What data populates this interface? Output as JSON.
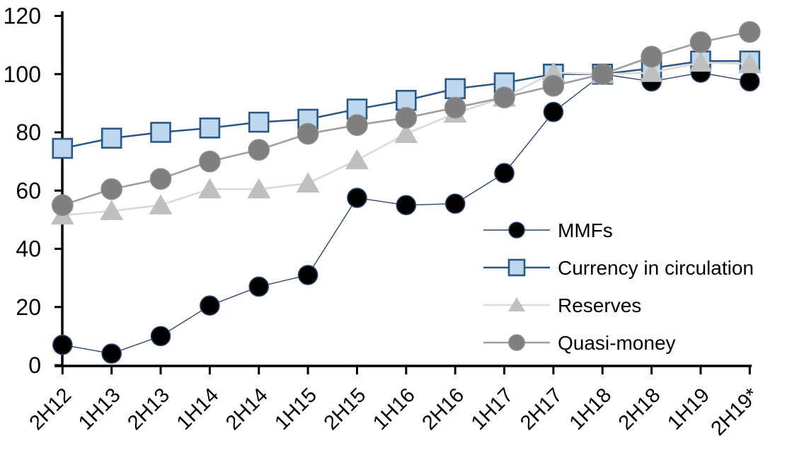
{
  "chart_data": {
    "type": "line",
    "title": "",
    "xlabel": "",
    "ylabel": "",
    "categories": [
      "2H12",
      "1H13",
      "2H13",
      "1H14",
      "2H14",
      "1H15",
      "2H15",
      "1H16",
      "2H16",
      "1H17",
      "2H17",
      "1H18",
      "2H18",
      "1H19",
      "2H19*"
    ],
    "series": [
      {
        "name": "MMFs",
        "marker": "circle",
        "line_color": "#2e4470",
        "marker_fill": "#000000",
        "marker_stroke": "#2e4470",
        "line_width": 1.4,
        "values": [
          7,
          4,
          10,
          20.5,
          27,
          31,
          57.5,
          55,
          55.5,
          66,
          87,
          100,
          97.5,
          100.5,
          97.5
        ]
      },
      {
        "name": "Currency in circulation",
        "marker": "square",
        "line_color": "#2a5783",
        "marker_fill": "#bdd7ee",
        "marker_stroke": "#2a5783",
        "line_width": 2.5,
        "values": [
          74.5,
          78,
          80,
          81.5,
          83.5,
          84.5,
          88,
          91,
          95,
          97,
          100,
          100,
          102,
          104.5,
          104.5
        ]
      },
      {
        "name": "Reserves",
        "marker": "triangle",
        "line_color": "#d9d9d9",
        "marker_fill": "#bfbfbf",
        "marker_stroke": "#bfbfbf",
        "line_width": 2.6,
        "values": [
          51.5,
          53,
          55,
          60.5,
          60.5,
          62.5,
          70.5,
          79.5,
          86.5,
          92,
          100.5,
          100,
          100.5,
          104,
          103.5
        ]
      },
      {
        "name": "Quasi-money",
        "marker": "circle",
        "line_color": "#9e9e9e",
        "marker_fill": "#7f7f7f",
        "marker_stroke": "#8c8c8c",
        "line_width": 2.6,
        "values": [
          55,
          60.5,
          64,
          70,
          74,
          79.5,
          82.5,
          85,
          88.5,
          92,
          96,
          100,
          106,
          111,
          114.5
        ]
      }
    ],
    "ylim": [
      0,
      120
    ],
    "y_ticks": [
      0,
      20,
      40,
      60,
      80,
      100,
      120
    ],
    "grid": false,
    "legend_position": "inside-right-middle",
    "legend_labels": [
      "MMFs",
      "Currency in circulation",
      "Reserves",
      "Quasi-money"
    ],
    "axis_color": "#000000",
    "background_color": "#ffffff",
    "x_tick_rotation_deg": -45
  }
}
